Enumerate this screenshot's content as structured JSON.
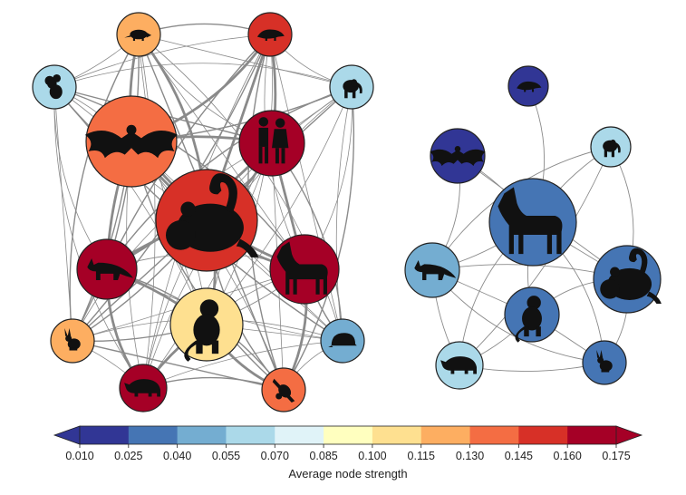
{
  "networks": [
    {
      "id": "left",
      "nodes": [
        {
          "id": "armadillo",
          "icon": "armadillo-icon",
          "strength": 0.128
        },
        {
          "id": "pangolin",
          "icon": "pangolin-icon",
          "strength": 0.152
        },
        {
          "id": "koala",
          "icon": "koala-icon",
          "strength": 0.062
        },
        {
          "id": "elephant",
          "icon": "elephant-icon",
          "strength": 0.062
        },
        {
          "id": "bat",
          "icon": "bat-icon",
          "strength": 0.14
        },
        {
          "id": "human",
          "icon": "human-icon",
          "strength": 0.168
        },
        {
          "id": "mouse",
          "icon": "mouse-icon",
          "strength": 0.152
        },
        {
          "id": "fox",
          "icon": "fox-icon",
          "strength": 0.168
        },
        {
          "id": "goat",
          "icon": "goat-icon",
          "strength": 0.168
        },
        {
          "id": "monkey",
          "icon": "monkey-icon",
          "strength": 0.108
        },
        {
          "id": "rabbit",
          "icon": "rabbit-icon",
          "strength": 0.122
        },
        {
          "id": "hedgehog",
          "icon": "hedgehog-icon",
          "strength": 0.05
        },
        {
          "id": "rhino",
          "icon": "rhino-icon",
          "strength": 0.168
        },
        {
          "id": "sloth",
          "icon": "sloth-icon",
          "strength": 0.138
        }
      ]
    },
    {
      "id": "right",
      "nodes": [
        {
          "id": "pangolin",
          "icon": "pangolin-icon",
          "strength": 0.015
        },
        {
          "id": "bat",
          "icon": "bat-icon",
          "strength": 0.018
        },
        {
          "id": "elephant",
          "icon": "elephant-icon",
          "strength": 0.062
        },
        {
          "id": "goat",
          "icon": "goat-icon",
          "strength": 0.038
        },
        {
          "id": "fox",
          "icon": "fox-icon",
          "strength": 0.05
        },
        {
          "id": "mouse",
          "icon": "mouse-icon",
          "strength": 0.036
        },
        {
          "id": "monkey",
          "icon": "monkey-icon",
          "strength": 0.034
        },
        {
          "id": "rhino",
          "icon": "rhino-icon",
          "strength": 0.06
        },
        {
          "id": "rabbit",
          "icon": "rabbit-icon",
          "strength": 0.034
        }
      ]
    }
  ],
  "colorbar": {
    "title": "Average node strength",
    "tick_labels": [
      "0.010",
      "0.025",
      "0.040",
      "0.055",
      "0.070",
      "0.085",
      "0.100",
      "0.115",
      "0.130",
      "0.145",
      "0.160",
      "0.175"
    ],
    "colors": [
      "#313695",
      "#4575b4",
      "#74add1",
      "#abd9e9",
      "#e0f3f8",
      "#ffffbf",
      "#fee090",
      "#fdae61",
      "#f46d43",
      "#d73027",
      "#a50026"
    ],
    "under_color": "#313695",
    "over_color": "#a50026"
  }
}
